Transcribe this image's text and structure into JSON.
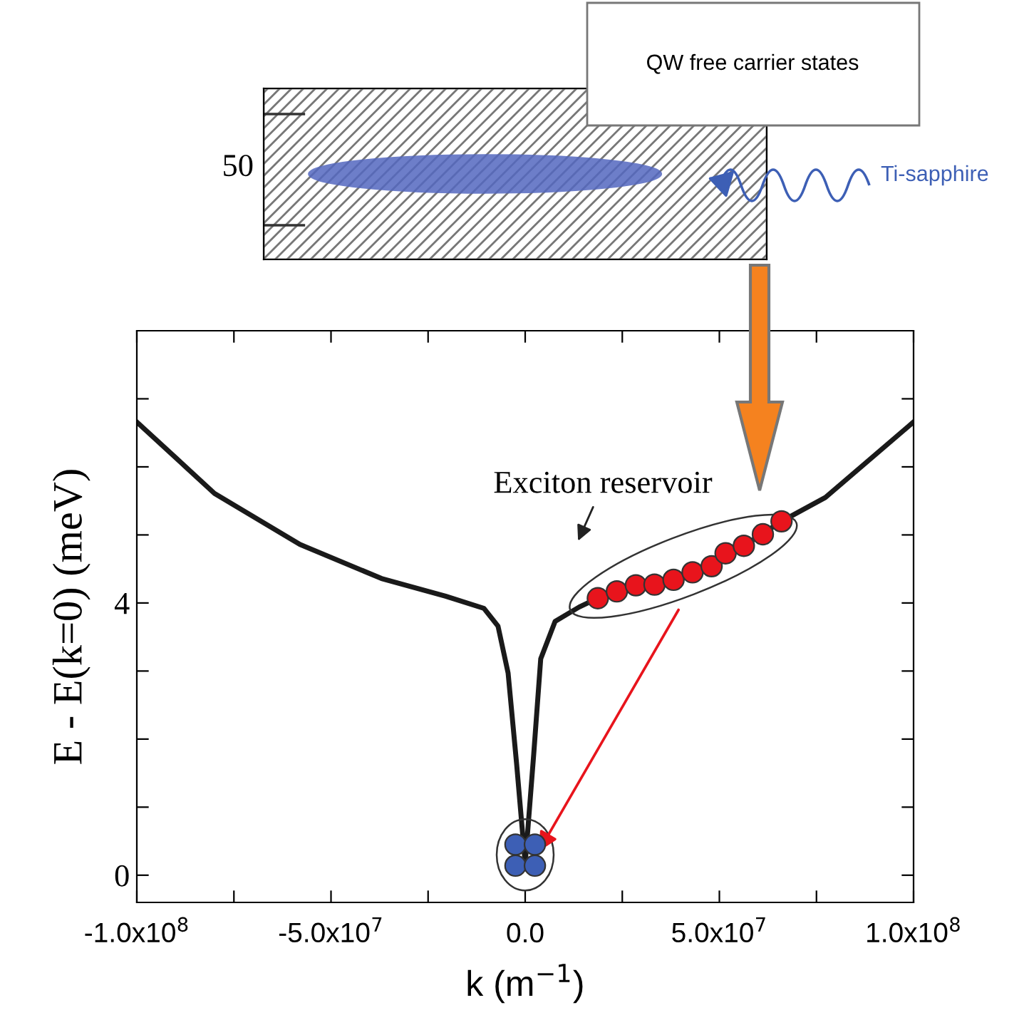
{
  "chart_data": {
    "type": "line",
    "xlabel": "k (m$^{−1}$)",
    "ylabel": "E - E(k=0) (meV)",
    "annotations": [
      "Exciton reservoir",
      "QW free carrier states",
      "Ti-sapphire",
      "50"
    ],
    "series": [
      {
        "color": "#1a1a1a",
        "x": [
          -100000000.0,
          -80000000.0,
          -58000000.0,
          -37000000.0,
          -20500000.0,
          -10600000.0,
          -7000000.0,
          -4400000.0,
          -2200000.0,
          0,
          2200000.0,
          4000000.0,
          7700000.0,
          13900000.0,
          18700000.0,
          28500000.0,
          38200000.0,
          48000000.0,
          56300000.0,
          66000000.0,
          77300000.0,
          100000000.0
        ],
        "values": [
          6.66,
          5.61,
          4.86,
          4.36,
          4.1,
          3.92,
          3.66,
          2.97,
          1.63,
          0.17,
          1.78,
          3.18,
          3.73,
          3.94,
          4.07,
          4.26,
          4.34,
          4.54,
          4.84,
          5.2,
          5.55,
          6.66
        ]
      },
      {
        "type": "scatter",
        "marker": "circle",
        "color": "#e8141c",
        "x": [
          18700000.0,
          23600000.0,
          28500000.0,
          33300000.0,
          38200000.0,
          43100000.0,
          48000000.0,
          51600000.0,
          56300000.0,
          61200000.0,
          66000000.0
        ],
        "values": [
          4.07,
          4.17,
          4.26,
          4.27,
          4.34,
          4.45,
          4.54,
          4.73,
          4.84,
          5.01,
          5.2
        ]
      },
      {
        "type": "scatter",
        "marker": "circle",
        "color": "#3d5fb5",
        "x": [
          -2500000.0,
          2500000.0,
          -2500000.0,
          2500000.0
        ],
        "values": [
          0.45,
          0.45,
          0.14,
          0.14
        ]
      }
    ],
    "xlim": [
      -100000000.0,
      100000000.0
    ],
    "xticks": [
      {
        "value": -100000000.0,
        "label": "-1.0x10$^{8}$"
      },
      {
        "value": -75000000.0,
        "label": null
      },
      {
        "value": -50000000.0,
        "label": "-5.0x10$^{7}$"
      },
      {
        "value": -25000000.0,
        "label": null
      },
      {
        "value": 0,
        "label": "0.0"
      },
      {
        "value": 25000000.0,
        "label": null
      },
      {
        "value": 50000000.0,
        "label": "5.0x10$^{7}$"
      },
      {
        "value": 75000000.0,
        "label": null
      },
      {
        "value": 100000000.0,
        "label": "1.0x10$^{8}$"
      }
    ],
    "ylim": [
      -0.4,
      8
    ],
    "yticks": [
      0,
      {
        "value": 1,
        "label": null
      },
      {
        "value": 2,
        "label": null
      },
      {
        "value": 3,
        "label": null
      },
      4,
      {
        "value": 5,
        "label": null
      },
      {
        "value": 6,
        "label": null
      },
      {
        "value": 7,
        "label": null
      }
    ],
    "grid": false,
    "legend": false
  }
}
